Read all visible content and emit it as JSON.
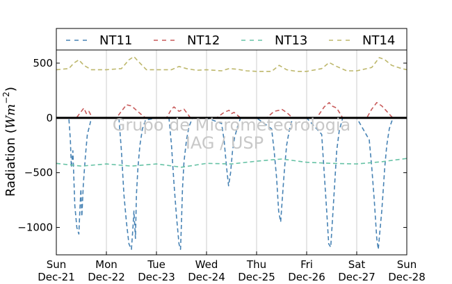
{
  "chart_data": {
    "type": "line",
    "ylabel": "Radiation (Wm⁻²)",
    "ylabel_parts": {
      "prefix": "Radiation (",
      "unit_main": "Wm",
      "unit_exp": "−2",
      "suffix": ")"
    },
    "xlabel": "",
    "ylim": [
      -1250,
      620
    ],
    "xlim": [
      0,
      7
    ],
    "yticks": [
      500,
      0,
      -500,
      -1000
    ],
    "ytick_labels": [
      "500",
      "0",
      "−500",
      "−1000"
    ],
    "xticks": [
      0,
      1,
      2,
      3,
      4,
      5,
      6,
      7
    ],
    "xtick_labels": [
      [
        "Sun",
        "Dec-21"
      ],
      [
        "Mon",
        "Dec-22"
      ],
      [
        "Tue",
        "Dec-23"
      ],
      [
        "Wed",
        "Dec-24"
      ],
      [
        "Thu",
        "Dec-25"
      ],
      [
        "Fri",
        "Dec-26"
      ],
      [
        "Sat",
        "Dec-27"
      ],
      [
        "Sun",
        "Dec-28"
      ]
    ],
    "grid": "vertical",
    "legend_position": "top",
    "watermark": [
      "Grupo de Micrometeorologia",
      "IAG / USP"
    ],
    "series": [
      {
        "name": "NT11",
        "color": "#4682b4",
        "dash": "dashed",
        "x": [
          0,
          0.25,
          0.28,
          0.3,
          0.33,
          0.37,
          0.41,
          0.45,
          0.47,
          0.49,
          0.51,
          0.54,
          0.58,
          0.62,
          0.66,
          0.69,
          0.72,
          1.0,
          1.25,
          1.3,
          1.35,
          1.4,
          1.45,
          1.5,
          1.53,
          1.55,
          1.58,
          1.6,
          1.63,
          1.67,
          1.72,
          1.78,
          2.0,
          2.25,
          2.3,
          2.35,
          2.4,
          2.45,
          2.48,
          2.5,
          2.52,
          2.55,
          2.6,
          2.65,
          2.72,
          3.0,
          3.3,
          3.35,
          3.4,
          3.44,
          3.48,
          3.52,
          3.56,
          3.62,
          3.68,
          4.0,
          4.3,
          4.35,
          4.4,
          4.44,
          4.48,
          4.52,
          4.56,
          4.6,
          4.65,
          4.72,
          5.0,
          5.3,
          5.35,
          5.4,
          5.44,
          5.48,
          5.52,
          5.56,
          5.6,
          5.65,
          5.72,
          6.0,
          6.25,
          6.3,
          6.35,
          6.4,
          6.43,
          6.46,
          6.5,
          6.53,
          6.56,
          6.6,
          6.65,
          6.7,
          6.75,
          7.0
        ],
        "y": [
          0,
          0,
          -200,
          -450,
          -300,
          -800,
          -1000,
          -1060,
          -850,
          -650,
          -900,
          -600,
          -350,
          -150,
          -80,
          -20,
          0,
          0,
          0,
          -300,
          -700,
          -950,
          -1150,
          -1200,
          -1000,
          -850,
          -1100,
          -700,
          -450,
          -250,
          -100,
          -20,
          0,
          0,
          -250,
          -600,
          -900,
          -1150,
          -1200,
          -950,
          -650,
          -400,
          -200,
          -80,
          0,
          0,
          -50,
          -200,
          -450,
          -620,
          -500,
          -300,
          -180,
          -80,
          0,
          0,
          -100,
          -300,
          -550,
          -850,
          -950,
          -700,
          -450,
          -250,
          -120,
          0,
          0,
          -150,
          -500,
          -850,
          -1150,
          -1180,
          -900,
          -600,
          -300,
          -120,
          0,
          0,
          -200,
          -450,
          -750,
          -1100,
          -1200,
          -1050,
          -850,
          -650,
          -450,
          -250,
          -100,
          -30,
          0,
          0
        ]
      },
      {
        "name": "NT12",
        "color": "#c85a5a",
        "dash": "dashed",
        "x": [
          0,
          0.4,
          0.5,
          0.55,
          0.6,
          0.65,
          0.72,
          1.2,
          1.3,
          1.4,
          1.5,
          1.6,
          1.7,
          1.78,
          2.2,
          2.3,
          2.35,
          2.45,
          2.55,
          2.68,
          3.2,
          3.35,
          3.45,
          3.5,
          3.55,
          3.68,
          4.2,
          4.35,
          4.45,
          4.5,
          4.6,
          4.72,
          5.2,
          5.35,
          5.45,
          5.5,
          5.6,
          5.72,
          6.2,
          6.3,
          6.4,
          6.5,
          6.6,
          6.72,
          7.0
        ],
        "y": [
          0,
          0,
          60,
          90,
          40,
          60,
          0,
          0,
          60,
          120,
          110,
          70,
          30,
          0,
          0,
          80,
          100,
          60,
          80,
          0,
          0,
          50,
          70,
          40,
          50,
          0,
          0,
          60,
          70,
          80,
          50,
          0,
          0,
          100,
          140,
          110,
          90,
          0,
          0,
          80,
          140,
          110,
          60,
          0,
          0
        ]
      },
      {
        "name": "NT13",
        "color": "#66c2a5",
        "dash": "dashed",
        "x": [
          0,
          0.5,
          1.0,
          1.5,
          2.0,
          2.5,
          3.0,
          3.5,
          4.0,
          4.5,
          5.0,
          5.5,
          6.0,
          6.5,
          7.0
        ],
        "y": [
          -415,
          -440,
          -420,
          -440,
          -420,
          -450,
          -415,
          -420,
          -395,
          -375,
          -405,
          -415,
          -420,
          -400,
          -370
        ]
      },
      {
        "name": "NT14",
        "color": "#bdb76b",
        "dash": "dashed",
        "x": [
          0,
          0.25,
          0.35,
          0.45,
          0.55,
          0.7,
          1.0,
          1.3,
          1.45,
          1.55,
          1.65,
          1.8,
          2.0,
          2.3,
          2.45,
          2.6,
          2.8,
          3.0,
          3.3,
          3.45,
          3.6,
          3.8,
          4.0,
          4.3,
          4.45,
          4.6,
          4.8,
          5.0,
          5.3,
          5.45,
          5.6,
          5.8,
          6.0,
          6.3,
          6.45,
          6.55,
          6.7,
          6.9,
          7.0
        ],
        "y": [
          440,
          450,
          500,
          530,
          480,
          440,
          440,
          450,
          530,
          560,
          510,
          440,
          440,
          440,
          470,
          450,
          435,
          440,
          430,
          450,
          445,
          430,
          425,
          425,
          480,
          440,
          425,
          425,
          450,
          505,
          470,
          430,
          430,
          460,
          550,
          535,
          480,
          450,
          440
        ]
      }
    ]
  }
}
